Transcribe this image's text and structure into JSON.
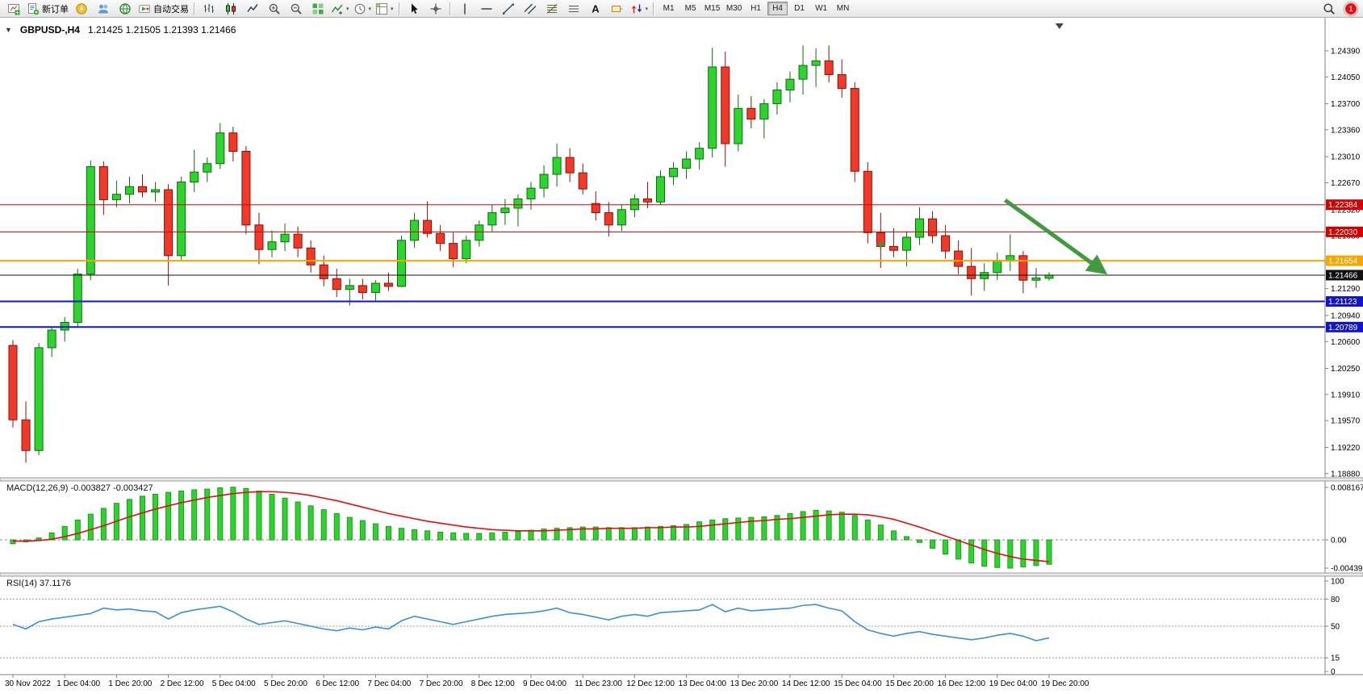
{
  "toolbar": {
    "left_items": [
      {
        "type": "button",
        "name": "new-chart",
        "icon": "new-chart"
      },
      {
        "type": "button",
        "name": "new-order",
        "icon": "new-order",
        "label": "新订单"
      },
      {
        "type": "button",
        "name": "mql5-community",
        "icon": "compass"
      },
      {
        "type": "button",
        "name": "community-chat",
        "icon": "community"
      },
      {
        "type": "button",
        "name": "web-terminal",
        "icon": "web"
      },
      {
        "type": "button",
        "name": "auto-trading",
        "icon": "autotrading",
        "label": "自动交易"
      },
      {
        "type": "sep"
      },
      {
        "type": "button",
        "name": "bar-chart-mode",
        "icon": "bars"
      },
      {
        "type": "button",
        "name": "candlestick-mode",
        "icon": "candles"
      },
      {
        "type": "button",
        "name": "line-chart-mode",
        "icon": "linechart"
      },
      {
        "type": "button",
        "name": "zoom-in",
        "icon": "zoom-in"
      },
      {
        "type": "button",
        "name": "zoom-out",
        "icon": "zoom-out"
      },
      {
        "type": "button",
        "name": "tile-windows",
        "icon": "tile"
      },
      {
        "type": "button",
        "name": "indicators",
        "icon": "indicator",
        "dropdown": true
      },
      {
        "type": "button",
        "name": "periods",
        "icon": "clock",
        "dropdown": true
      },
      {
        "type": "button",
        "name": "templates",
        "icon": "template",
        "dropdown": true
      },
      {
        "type": "sep"
      },
      {
        "type": "button",
        "name": "cursor",
        "icon": "cursor"
      },
      {
        "type": "button",
        "name": "crosshair",
        "icon": "crosshair"
      },
      {
        "type": "sep"
      },
      {
        "type": "button",
        "name": "vertical-line",
        "icon": "vline"
      },
      {
        "type": "button",
        "name": "horizontal-line",
        "icon": "hline"
      },
      {
        "type": "button",
        "name": "trendline",
        "icon": "trendline"
      },
      {
        "type": "button",
        "name": "equidistant-channel",
        "icon": "channel"
      },
      {
        "type": "button",
        "name": "fibonacci-retracement",
        "icon": "fibo"
      },
      {
        "type": "button",
        "name": "shapes",
        "icon": "shapes"
      },
      {
        "type": "button",
        "name": "text-tool",
        "icon": "text"
      },
      {
        "type": "button",
        "name": "text-label",
        "icon": "label"
      },
      {
        "type": "button",
        "name": "arrows",
        "icon": "arrows",
        "dropdown": true
      },
      {
        "type": "sep"
      }
    ],
    "timeframes": [
      {
        "label": "M1"
      },
      {
        "label": "M5"
      },
      {
        "label": "M15"
      },
      {
        "label": "M30"
      },
      {
        "label": "H1"
      },
      {
        "label": "H4"
      },
      {
        "label": "D1"
      },
      {
        "label": "W1"
      },
      {
        "label": "MN"
      }
    ],
    "active_timeframe": "H4",
    "notification_badge": "1"
  },
  "chart": {
    "title": "GBPUSD-,H4",
    "ohlc": "1.21425 1.21505 1.21393 1.21466"
  },
  "chart_data": {
    "type": "candlestick",
    "symbol": "GBPUSD-",
    "timeframe": "H4",
    "current_ohlc": {
      "open": "1.21425",
      "high": "1.21505",
      "low": "1.21393",
      "close": "1.21466"
    },
    "colors": {
      "up": "#2fd32f",
      "up_border": "#0d6b0d",
      "down": "#ee3a2a",
      "down_border": "#8f0f00",
      "macd_hist": "#2fd32f",
      "macd_hist_border": "#1f9a1f",
      "macd_signal": "#e01010",
      "rsi": "#3d8fd9",
      "arrow": "#3f9b3f",
      "cross": "#2e9e3e",
      "line_red": "#d40000",
      "line_orange": "#f5a700",
      "line_blue": "#1212cf",
      "price_black": "#101010"
    },
    "price_axis": {
      "max": 1.2439,
      "min": 1.1888,
      "labels": [
        "1.24390",
        "1.24050",
        "1.23700",
        "1.23360",
        "1.23010",
        "1.22670",
        "1.22320",
        "1.21980",
        "1.21630",
        "1.21290",
        "1.20940",
        "1.20600",
        "1.20250",
        "1.19910",
        "1.19570",
        "1.19220",
        "1.18880"
      ]
    },
    "candles": [
      [
        1.2055,
        1.2062,
        1.1948,
        1.1958
      ],
      [
        1.1958,
        1.1982,
        1.1902,
        1.1918
      ],
      [
        1.1918,
        1.2058,
        1.1912,
        1.2052
      ],
      [
        1.2052,
        1.208,
        1.204,
        1.2075
      ],
      [
        1.2075,
        1.2092,
        1.206,
        1.2085
      ],
      [
        1.2085,
        1.2155,
        1.2078,
        1.2148
      ],
      [
        1.2148,
        1.2296,
        1.214,
        1.2288
      ],
      [
        1.2288,
        1.2295,
        1.2225,
        1.2245
      ],
      [
        1.2245,
        1.227,
        1.2235,
        1.2252
      ],
      [
        1.2252,
        1.2275,
        1.224,
        1.2262
      ],
      [
        1.2262,
        1.2278,
        1.2248,
        1.2255
      ],
      [
        1.2255,
        1.2268,
        1.2242,
        1.2258
      ],
      [
        1.2258,
        1.2265,
        1.2133,
        1.2172
      ],
      [
        1.2172,
        1.2275,
        1.2165,
        1.2268
      ],
      [
        1.2268,
        1.231,
        1.2255,
        1.2281
      ],
      [
        1.2281,
        1.23,
        1.2268,
        1.2292
      ],
      [
        1.2292,
        1.2345,
        1.2285,
        1.2332
      ],
      [
        1.2332,
        1.234,
        1.2295,
        1.2308
      ],
      [
        1.2308,
        1.2315,
        1.22,
        1.2212
      ],
      [
        1.2212,
        1.2228,
        1.2161,
        1.218
      ],
      [
        1.218,
        1.2205,
        1.217,
        1.219
      ],
      [
        1.219,
        1.2214,
        1.2178,
        1.22
      ],
      [
        1.22,
        1.221,
        1.217,
        1.2182
      ],
      [
        1.2182,
        1.2192,
        1.215,
        1.216
      ],
      [
        1.216,
        1.2172,
        1.2132,
        1.2142
      ],
      [
        1.2142,
        1.2155,
        1.2118,
        1.2128
      ],
      [
        1.2128,
        1.2142,
        1.2107,
        1.2133
      ],
      [
        1.2133,
        1.2142,
        1.2115,
        1.2124
      ],
      [
        1.2124,
        1.214,
        1.2112,
        1.2136
      ],
      [
        1.2136,
        1.215,
        1.2126,
        1.2132
      ],
      [
        1.2132,
        1.2198,
        1.2131,
        1.2192
      ],
      [
        1.2192,
        1.2228,
        1.2182,
        1.2218
      ],
      [
        1.2218,
        1.2243,
        1.2196,
        1.2201
      ],
      [
        1.2201,
        1.2212,
        1.2178,
        1.2188
      ],
      [
        1.2188,
        1.2202,
        1.2157,
        1.2168
      ],
      [
        1.2168,
        1.2198,
        1.2162,
        1.2192
      ],
      [
        1.2192,
        1.2218,
        1.2184,
        1.2212
      ],
      [
        1.2212,
        1.2238,
        1.2202,
        1.2228
      ],
      [
        1.2228,
        1.2246,
        1.2212,
        1.2234
      ],
      [
        1.2234,
        1.2252,
        1.221,
        1.2246
      ],
      [
        1.2246,
        1.2268,
        1.2232,
        1.226
      ],
      [
        1.226,
        1.229,
        1.2248,
        1.2278
      ],
      [
        1.2278,
        1.2318,
        1.2262,
        1.23
      ],
      [
        1.23,
        1.2312,
        1.2268,
        1.228
      ],
      [
        1.228,
        1.2292,
        1.2252,
        1.2259
      ],
      [
        1.224,
        1.2256,
        1.2218,
        1.2228
      ],
      [
        1.2228,
        1.2242,
        1.2197,
        1.2212
      ],
      [
        1.2212,
        1.2238,
        1.2204,
        1.2232
      ],
      [
        1.2232,
        1.2252,
        1.2222,
        1.2246
      ],
      [
        1.2246,
        1.2268,
        1.2234,
        1.2242
      ],
      [
        1.2242,
        1.2283,
        1.2238,
        1.2275
      ],
      [
        1.2275,
        1.2294,
        1.2264,
        1.2286
      ],
      [
        1.2286,
        1.2308,
        1.2272,
        1.2298
      ],
      [
        1.2298,
        1.232,
        1.2284,
        1.2312
      ],
      [
        1.2312,
        1.2443,
        1.23,
        1.2418
      ],
      [
        1.2418,
        1.2438,
        1.2288,
        1.2318
      ],
      [
        1.2318,
        1.2382,
        1.2308,
        1.2364
      ],
      [
        1.2364,
        1.238,
        1.2338,
        1.235
      ],
      [
        1.235,
        1.2376,
        1.2325,
        1.237
      ],
      [
        1.237,
        1.2398,
        1.2356,
        1.2388
      ],
      [
        1.2388,
        1.2412,
        1.2372,
        1.2402
      ],
      [
        1.2402,
        1.2446,
        1.2382,
        1.242
      ],
      [
        1.242,
        1.2442,
        1.2392,
        1.2426
      ],
      [
        1.2426,
        1.2446,
        1.2398,
        1.2408
      ],
      [
        1.2408,
        1.2428,
        1.2378,
        1.239
      ],
      [
        1.239,
        1.2398,
        1.2268,
        1.2282
      ],
      [
        1.2282,
        1.2294,
        1.2188,
        1.2202
      ],
      [
        1.2202,
        1.2228,
        1.2156,
        1.2184
      ],
      [
        1.2184,
        1.2208,
        1.217,
        1.2179
      ],
      [
        1.2179,
        1.2204,
        1.2158,
        1.2196
      ],
      [
        1.2196,
        1.2235,
        1.2186,
        1.222
      ],
      [
        1.222,
        1.223,
        1.2188,
        1.2198
      ],
      [
        1.2198,
        1.2212,
        1.2168,
        1.2178
      ],
      [
        1.2178,
        1.2192,
        1.2148,
        1.2158
      ],
      [
        1.2158,
        1.2182,
        1.212,
        1.2142
      ],
      [
        1.2142,
        1.2162,
        1.2126,
        1.215
      ],
      [
        1.215,
        1.2176,
        1.214,
        1.2166
      ],
      [
        1.2166,
        1.22,
        1.2152,
        1.2172
      ],
      [
        1.2172,
        1.2178,
        1.2123,
        1.214
      ],
      [
        1.214,
        1.2156,
        1.213,
        1.2143
      ],
      [
        1.21425,
        1.21505,
        1.21393,
        1.21466
      ]
    ],
    "time_labels": [
      {
        "i": 0,
        "t": "30 Nov 2022"
      },
      {
        "i": 4,
        "t": "1 Dec 04:00"
      },
      {
        "i": 8,
        "t": "1 Dec 20:00"
      },
      {
        "i": 12,
        "t": "2 Dec 12:00"
      },
      {
        "i": 16,
        "t": "5 Dec 04:00"
      },
      {
        "i": 20,
        "t": "5 Dec 20:00"
      },
      {
        "i": 24,
        "t": "6 Dec 12:00"
      },
      {
        "i": 28,
        "t": "7 Dec 04:00"
      },
      {
        "i": 32,
        "t": "7 Dec 20:00"
      },
      {
        "i": 36,
        "t": "8 Dec 12:00"
      },
      {
        "i": 40,
        "t": "9 Dec 04:00"
      },
      {
        "i": 44,
        "t": "11 Dec 23:00"
      },
      {
        "i": 48,
        "t": "12 Dec 12:00"
      },
      {
        "i": 52,
        "t": "13 Dec 04:00"
      },
      {
        "i": 56,
        "t": "13 Dec 20:00"
      },
      {
        "i": 60,
        "t": "14 Dec 12:00"
      },
      {
        "i": 64,
        "t": "15 Dec 04:00"
      },
      {
        "i": 68,
        "t": "15 Dec 20:00"
      },
      {
        "i": 72,
        "t": "16 Dec 12:00"
      },
      {
        "i": 76,
        "t": "19 Dec 04:00"
      },
      {
        "i": 80,
        "t": "19 Dec 20:00"
      }
    ],
    "hlines": [
      {
        "price": 1.22384,
        "label": "1.22384",
        "color": "#d40000",
        "width": 1
      },
      {
        "price": 1.2203,
        "label": "1.22030",
        "color": "#d40000",
        "width": 1
      },
      {
        "price": 1.21654,
        "label": "1.21654",
        "color": "#f5a700",
        "width": 2
      },
      {
        "price": 1.21123,
        "label": "1.21123",
        "color": "#1212cf",
        "width": 2
      },
      {
        "price": 1.20789,
        "label": "1.20789",
        "color": "#1212cf",
        "width": 2
      }
    ],
    "current_price": {
      "price": 1.21466,
      "label": "1.21466",
      "color": "#101010"
    },
    "annotations": {
      "arrow": {
        "from_index": 76.6,
        "from_price": 1.22444,
        "to_index": 84.0,
        "to_price": 1.21536
      },
      "cross": {
        "index": 67,
        "price": 1.2186
      },
      "shift_marker_index": 80.8
    },
    "macd": {
      "label": "MACD(12,26,9) -0.003827 -0.003427",
      "axis_labels": [
        "0.008167",
        "0.00",
        "-0.004398"
      ],
      "axis_values": [
        0.008167,
        0,
        -0.004398
      ],
      "values": [
        -0.0006,
        -0.0003,
        0.0003,
        0.0011,
        0.0021,
        0.0031,
        0.004,
        0.0049,
        0.0057,
        0.0063,
        0.0068,
        0.0071,
        0.0074,
        0.0076,
        0.0078,
        0.0079,
        0.0081,
        0.0082,
        0.008,
        0.0076,
        0.0071,
        0.0065,
        0.0059,
        0.0053,
        0.0047,
        0.0041,
        0.0035,
        0.003,
        0.0025,
        0.0021,
        0.0018,
        0.0016,
        0.0014,
        0.0012,
        0.0011,
        0.001,
        0.001,
        0.0011,
        0.0012,
        0.0013,
        0.0015,
        0.0017,
        0.0018,
        0.0019,
        0.002,
        0.002,
        0.0019,
        0.0019,
        0.0019,
        0.002,
        0.0021,
        0.0022,
        0.0024,
        0.0028,
        0.0031,
        0.0033,
        0.0034,
        0.0035,
        0.0036,
        0.0038,
        0.0041,
        0.0044,
        0.0046,
        0.0045,
        0.0043,
        0.0038,
        0.0031,
        0.0023,
        0.0014,
        0.0005,
        -0.0004,
        -0.0013,
        -0.0022,
        -0.003,
        -0.0036,
        -0.0041,
        -0.0043,
        -0.0044,
        -0.0042,
        -0.004,
        -0.0038
      ],
      "signal": [
        -0.0002,
        -0.0002,
        -0.0001,
        0.0001,
        0.0005,
        0.001,
        0.0016,
        0.0022,
        0.0029,
        0.0036,
        0.0042,
        0.0048,
        0.0053,
        0.0058,
        0.0062,
        0.0066,
        0.0069,
        0.0072,
        0.0074,
        0.0075,
        0.0075,
        0.0074,
        0.0072,
        0.0069,
        0.0065,
        0.0061,
        0.0056,
        0.0051,
        0.0046,
        0.0041,
        0.0037,
        0.0033,
        0.0029,
        0.0026,
        0.0023,
        0.002,
        0.0018,
        0.0016,
        0.0015,
        0.0014,
        0.0014,
        0.0014,
        0.0015,
        0.0016,
        0.0017,
        0.0017,
        0.0018,
        0.0018,
        0.0018,
        0.0019,
        0.0019,
        0.002,
        0.002,
        0.0021,
        0.0023,
        0.0025,
        0.0027,
        0.0029,
        0.003,
        0.0032,
        0.0033,
        0.0035,
        0.0037,
        0.0039,
        0.004,
        0.004,
        0.0039,
        0.0036,
        0.0032,
        0.0026,
        0.002,
        0.0013,
        0.0006,
        -0.0001,
        -0.0008,
        -0.0015,
        -0.0021,
        -0.0026,
        -0.003,
        -0.0032,
        -0.0034
      ]
    },
    "rsi": {
      "label": "RSI(14) 37.1176",
      "levels": [
        80,
        50,
        15
      ],
      "axis_labels": [
        "100",
        "80",
        "50",
        "15",
        "0"
      ],
      "axis_values": [
        100,
        80,
        50,
        15,
        0
      ],
      "values": [
        52,
        47,
        55,
        58,
        60,
        62,
        64,
        70,
        68,
        69,
        67,
        66,
        58,
        65,
        68,
        70,
        72,
        66,
        58,
        52,
        54,
        56,
        53,
        50,
        47,
        45,
        48,
        46,
        49,
        47,
        56,
        61,
        58,
        55,
        52,
        55,
        58,
        61,
        63,
        64,
        65,
        67,
        70,
        65,
        63,
        60,
        57,
        61,
        63,
        61,
        65,
        66,
        67,
        68,
        74,
        66,
        70,
        67,
        68,
        69,
        70,
        73,
        74,
        70,
        67,
        55,
        46,
        42,
        39,
        42,
        44,
        41,
        39,
        37,
        35,
        37,
        40,
        42,
        39,
        34,
        37.1
      ]
    }
  }
}
